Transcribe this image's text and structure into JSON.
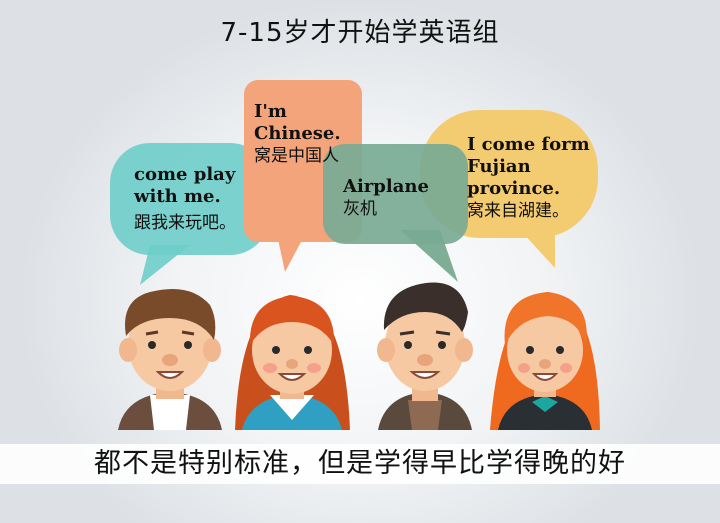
{
  "title": "7-15岁才开始学英语组",
  "bubbles": [
    {
      "en": "come play with me.",
      "cn": "跟我来玩吧。",
      "color": "#6ecdc9"
    },
    {
      "en": "I'm Chinese.",
      "cn": "窝是中国人",
      "color": "#f4a47a"
    },
    {
      "en": "Airplane",
      "cn": "灰机",
      "color": "#7fae97"
    },
    {
      "en": "I come form Fujian province.",
      "cn": "窝来自湖建。",
      "color": "#f3cc72"
    }
  ],
  "caption": "都不是特别标准，但是学得早比学得晚的好"
}
